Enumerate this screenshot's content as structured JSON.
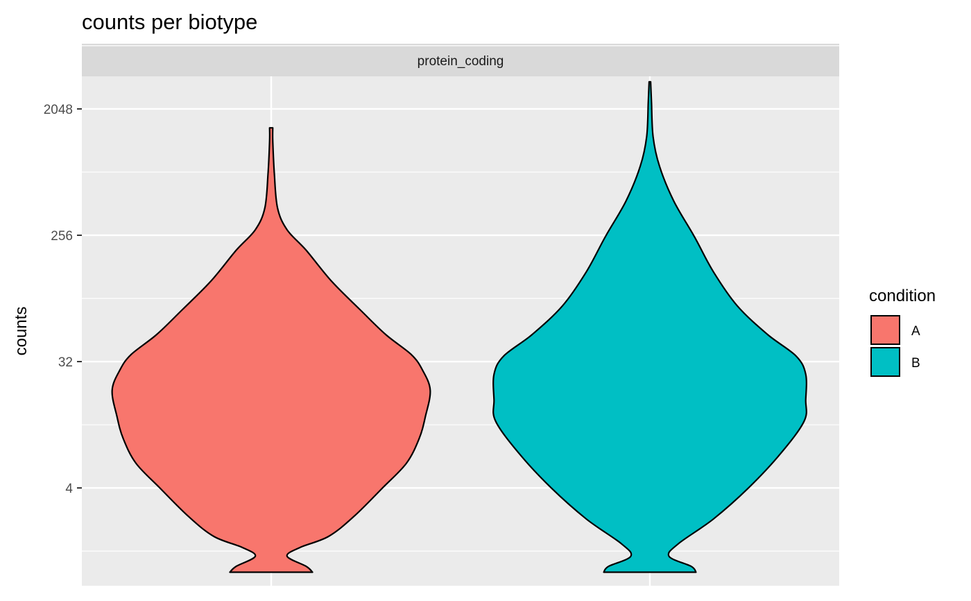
{
  "chart_data": {
    "type": "violin",
    "title": "counts per biotype",
    "facet": "protein_coding",
    "xlabel": "",
    "ylabel": "counts",
    "y_scale": "log2",
    "y_ticks": [
      4,
      32,
      256,
      2048
    ],
    "ylim": [
      0.8,
      3500
    ],
    "grid": true,
    "legend": {
      "title": "condition",
      "position": "right",
      "entries": [
        {
          "label": "A",
          "color": "#F8766D"
        },
        {
          "label": "B",
          "color": "#00BFC4"
        }
      ]
    },
    "series": [
      {
        "name": "A",
        "color": "#F8766D",
        "min": 1,
        "max": 1500,
        "profile": [
          [
            1,
            0.26
          ],
          [
            1.1,
            0.22
          ],
          [
            1.3,
            0.1
          ],
          [
            1.5,
            0.18
          ],
          [
            1.8,
            0.36
          ],
          [
            2.5,
            0.52
          ],
          [
            4,
            0.7
          ],
          [
            6,
            0.85
          ],
          [
            9,
            0.93
          ],
          [
            13,
            0.97
          ],
          [
            20,
            1.0
          ],
          [
            28,
            0.95
          ],
          [
            36,
            0.88
          ],
          [
            50,
            0.72
          ],
          [
            75,
            0.56
          ],
          [
            120,
            0.38
          ],
          [
            200,
            0.22
          ],
          [
            280,
            0.1
          ],
          [
            400,
            0.04
          ],
          [
            700,
            0.02
          ],
          [
            1200,
            0.01
          ],
          [
            1500,
            0.01
          ]
        ]
      },
      {
        "name": "B",
        "color": "#00BFC4",
        "min": 1,
        "max": 3200,
        "profile": [
          [
            1,
            0.29
          ],
          [
            1.1,
            0.26
          ],
          [
            1.3,
            0.12
          ],
          [
            1.6,
            0.18
          ],
          [
            2.4,
            0.4
          ],
          [
            4,
            0.62
          ],
          [
            7,
            0.82
          ],
          [
            12,
            0.97
          ],
          [
            17,
            0.98
          ],
          [
            26,
            0.98
          ],
          [
            35,
            0.92
          ],
          [
            50,
            0.74
          ],
          [
            80,
            0.55
          ],
          [
            140,
            0.4
          ],
          [
            250,
            0.28
          ],
          [
            450,
            0.15
          ],
          [
            800,
            0.06
          ],
          [
            1300,
            0.02
          ],
          [
            2300,
            0.01
          ],
          [
            3200,
            0.005
          ]
        ]
      }
    ]
  }
}
